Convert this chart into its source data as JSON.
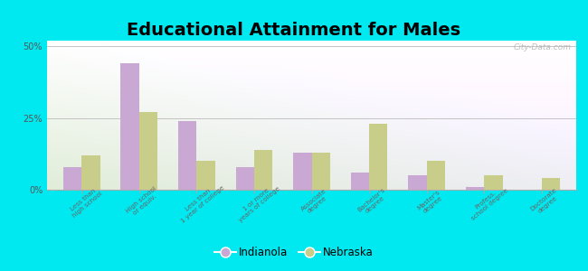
{
  "title": "Educational Attainment for Males",
  "categories": [
    "Less than\nhigh school",
    "High school\nor equiv.",
    "Less than\n1 year of college",
    "1 or more\nyears of college",
    "Associate\ndegree",
    "Bachelor's\ndegree",
    "Master's\ndegree",
    "Profess.\nschool degree",
    "Doctorate\ndegree"
  ],
  "indianola": [
    8.0,
    44.0,
    24.0,
    8.0,
    13.0,
    6.0,
    5.0,
    1.0,
    0.0
  ],
  "nebraska": [
    12.0,
    27.0,
    10.0,
    14.0,
    13.0,
    23.0,
    10.0,
    5.0,
    4.0
  ],
  "color_indianola": "#c9a8d4",
  "color_nebraska": "#c8cd8a",
  "background_outer": "#00e8f0",
  "ylim": [
    0,
    52
  ],
  "yticks": [
    0,
    25,
    50
  ],
  "ytick_labels": [
    "0%",
    "25%",
    "50%"
  ],
  "title_fontsize": 14,
  "legend_labels": [
    "Indianola",
    "Nebraska"
  ],
  "watermark": "City-Data.com"
}
